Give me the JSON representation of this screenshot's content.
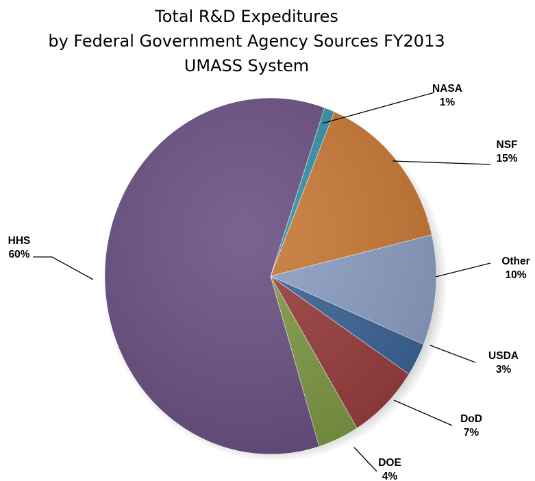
{
  "chart_data": {
    "type": "pie",
    "title": "Total R&D Expeditures",
    "subtitle": "by Federal Government Agency Sources FY2013",
    "subtitle2": "UMASS System",
    "slices": [
      {
        "name": "NASA",
        "pct_label": "1%",
        "value": 1,
        "color": "#3592A8"
      },
      {
        "name": "NSF",
        "pct_label": "15%",
        "value": 15,
        "color": "#C97A37"
      },
      {
        "name": "Other",
        "pct_label": "10%",
        "value": 10,
        "color": "#8C9FC4"
      },
      {
        "name": "USDA",
        "pct_label": "3%",
        "value": 3,
        "color": "#3C6698"
      },
      {
        "name": "DoD",
        "pct_label": "7%",
        "value": 7,
        "color": "#993F3E"
      },
      {
        "name": "DOE",
        "pct_label": "4%",
        "value": 4,
        "color": "#7E9A46"
      },
      {
        "name": "HHS",
        "pct_label": "60%",
        "value": 60,
        "color": "#6B5283"
      }
    ]
  }
}
